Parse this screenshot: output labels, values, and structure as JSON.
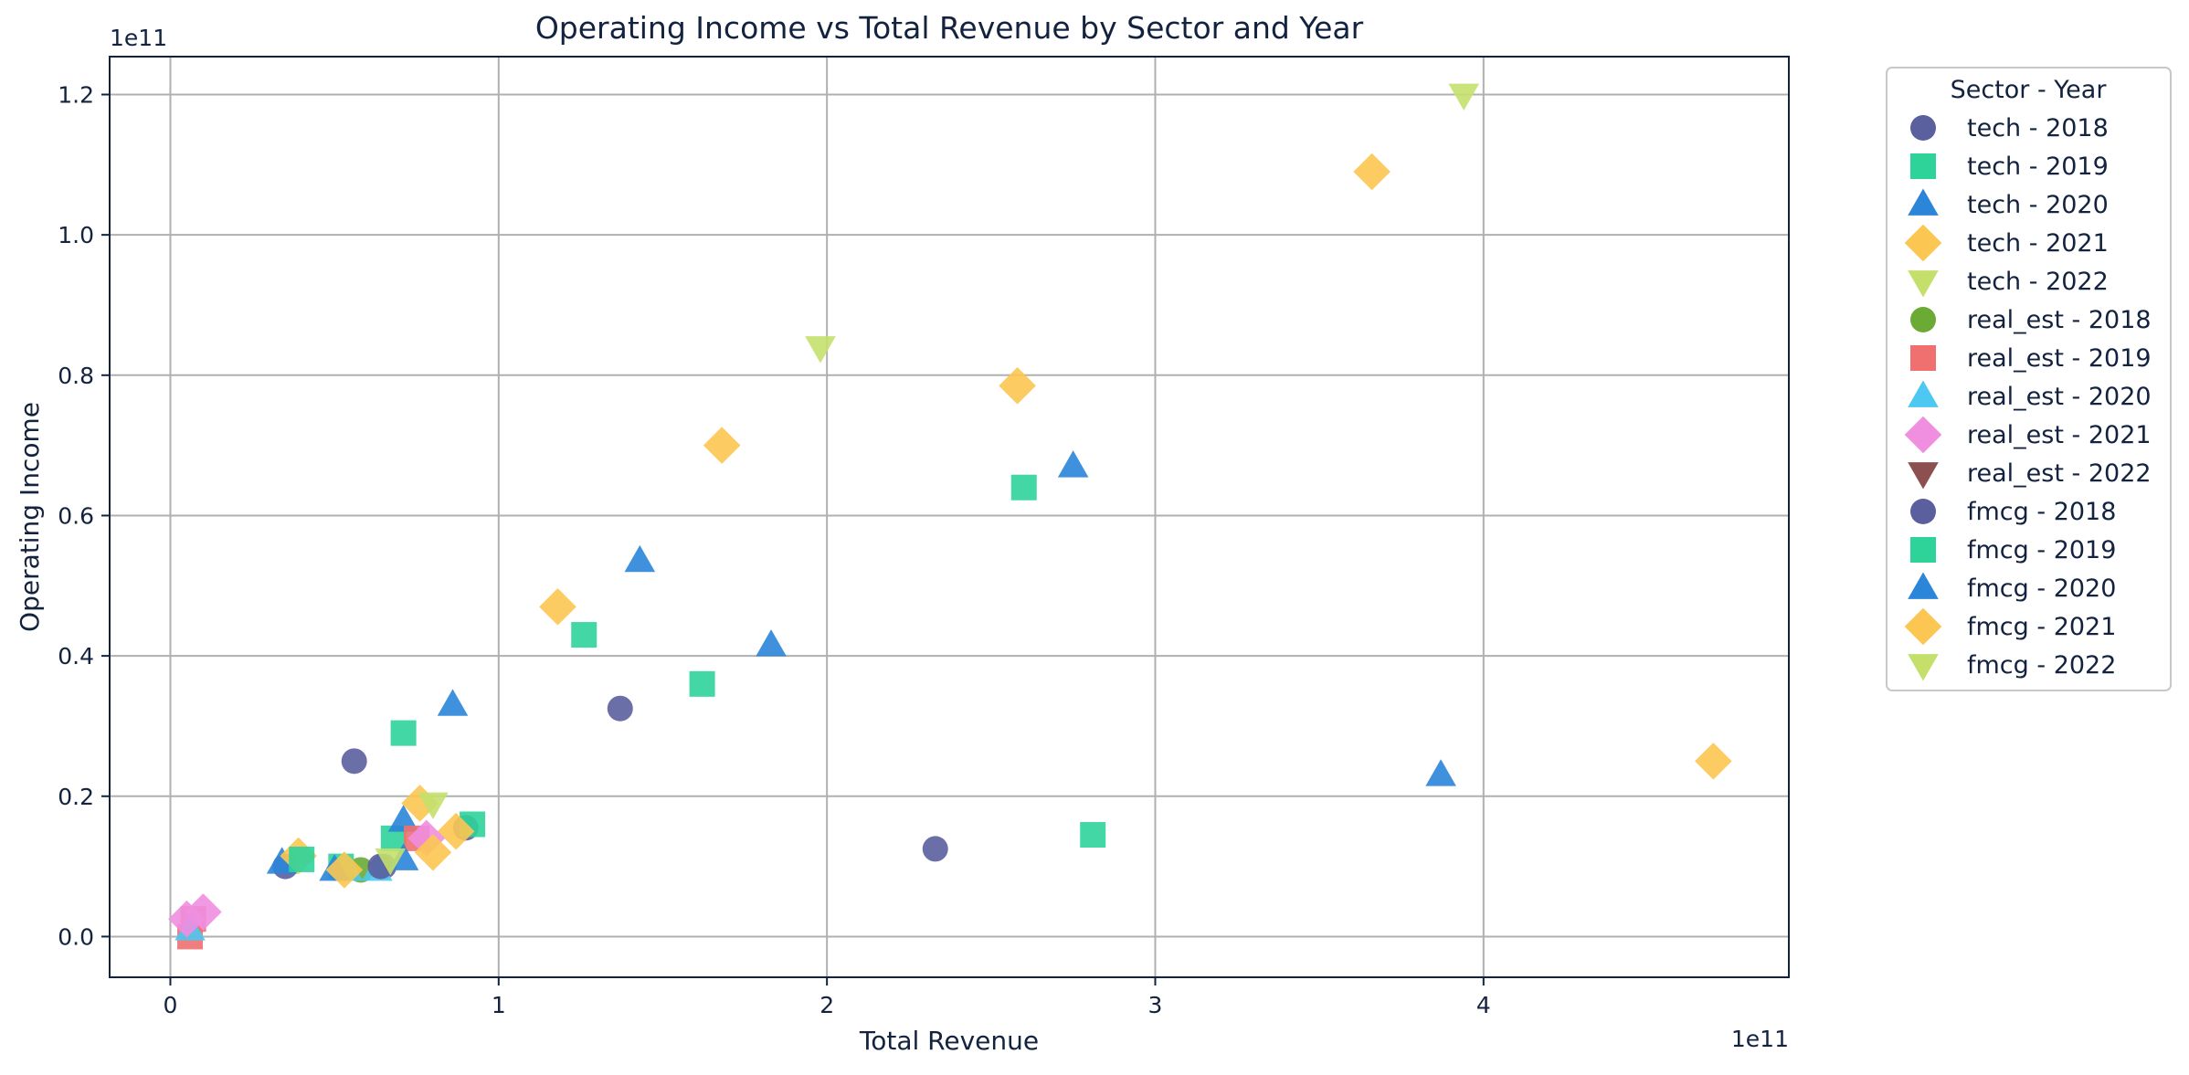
{
  "chart_data": {
    "type": "scatter",
    "title": "Operating Income vs Total Revenue by Sector and Year",
    "xlabel": "Total Revenue",
    "ylabel": "Operating Income",
    "x_scale_label": "1e11",
    "y_scale_label": "1e11",
    "xlim": [
      -0.185,
      4.93
    ],
    "ylim": [
      -0.058,
      1.254
    ],
    "x_ticks": [
      0,
      1,
      2,
      3,
      4
    ],
    "x_tick_labels": [
      "0",
      "1",
      "2",
      "3",
      "4"
    ],
    "y_ticks": [
      0.0,
      0.2,
      0.4,
      0.6,
      0.8,
      1.0,
      1.2
    ],
    "y_tick_labels": [
      "0.0",
      "0.2",
      "0.4",
      "0.6",
      "0.8",
      "1.0",
      "1.2"
    ],
    "grid": true,
    "legend": {
      "title": "Sector - Year",
      "placement": "outside-right"
    },
    "series": [
      {
        "name": "tech - 2018",
        "marker": "circle",
        "color": "#5a5f9e",
        "points": [
          [
            0.56,
            0.25
          ],
          [
            1.37,
            0.325
          ],
          [
            2.33,
            0.125
          ],
          [
            0.35,
            0.1
          ],
          [
            0.65,
            0.1
          ],
          [
            0.9,
            0.155
          ]
        ]
      },
      {
        "name": "tech - 2019",
        "marker": "square",
        "color": "#2ed39a",
        "points": [
          [
            0.71,
            0.29
          ],
          [
            1.26,
            0.43
          ],
          [
            1.62,
            0.36
          ],
          [
            2.6,
            0.64
          ],
          [
            2.81,
            0.145
          ],
          [
            0.92,
            0.16
          ],
          [
            0.68,
            0.14
          ]
        ]
      },
      {
        "name": "tech - 2020",
        "marker": "triangle-up",
        "color": "#2b85d9",
        "points": [
          [
            0.86,
            0.33
          ],
          [
            1.43,
            0.535
          ],
          [
            1.83,
            0.415
          ],
          [
            2.75,
            0.67
          ],
          [
            3.87,
            0.23
          ],
          [
            0.34,
            0.105
          ],
          [
            0.71,
            0.165
          ]
        ]
      },
      {
        "name": "tech - 2021",
        "marker": "diamond",
        "color": "#fcc652",
        "points": [
          [
            1.18,
            0.47
          ],
          [
            1.68,
            0.7
          ],
          [
            2.58,
            0.785
          ],
          [
            3.66,
            1.09
          ],
          [
            4.7,
            0.25
          ],
          [
            0.39,
            0.115
          ],
          [
            0.76,
            0.19
          ],
          [
            0.87,
            0.15
          ]
        ]
      },
      {
        "name": "tech - 2022",
        "marker": "triangle-down",
        "color": "#c4e06b",
        "points": [
          [
            1.98,
            0.84
          ],
          [
            3.94,
            1.2
          ],
          [
            0.8,
            0.19
          ]
        ]
      },
      {
        "name": "real_est - 2018",
        "marker": "circle",
        "color": "#6aaa35",
        "points": [
          [
            0.58,
            0.095
          ]
        ]
      },
      {
        "name": "real_est - 2019",
        "marker": "square",
        "color": "#f07070",
        "points": [
          [
            0.06,
            0.0
          ],
          [
            0.07,
            0.025
          ],
          [
            0.75,
            0.14
          ]
        ]
      },
      {
        "name": "real_est - 2020",
        "marker": "triangle-up",
        "color": "#4dc8f0",
        "points": [
          [
            0.06,
            0.01
          ],
          [
            0.63,
            0.095
          ],
          [
            0.54,
            0.095
          ]
        ]
      },
      {
        "name": "real_est - 2021",
        "marker": "diamond",
        "color": "#f08ee0",
        "points": [
          [
            0.05,
            0.025
          ],
          [
            0.1,
            0.035
          ],
          [
            0.78,
            0.14
          ]
        ]
      },
      {
        "name": "real_est - 2022",
        "marker": "triangle-down",
        "color": "#8c5050",
        "points": []
      },
      {
        "name": "fmcg - 2018",
        "marker": "circle",
        "color": "#5a5f9e",
        "points": [
          [
            0.64,
            0.1
          ]
        ]
      },
      {
        "name": "fmcg - 2019",
        "marker": "square",
        "color": "#2ed39a",
        "points": [
          [
            0.52,
            0.1
          ],
          [
            0.4,
            0.11
          ]
        ]
      },
      {
        "name": "fmcg - 2020",
        "marker": "triangle-up",
        "color": "#2b85d9",
        "points": [
          [
            0.5,
            0.095
          ],
          [
            0.71,
            0.11
          ]
        ]
      },
      {
        "name": "fmcg - 2021",
        "marker": "diamond",
        "color": "#fcc652",
        "points": [
          [
            0.53,
            0.095
          ],
          [
            0.8,
            0.12
          ]
        ]
      },
      {
        "name": "fmcg - 2022",
        "marker": "triangle-down",
        "color": "#c4e06b",
        "points": [
          [
            0.67,
            0.11
          ]
        ]
      }
    ]
  }
}
